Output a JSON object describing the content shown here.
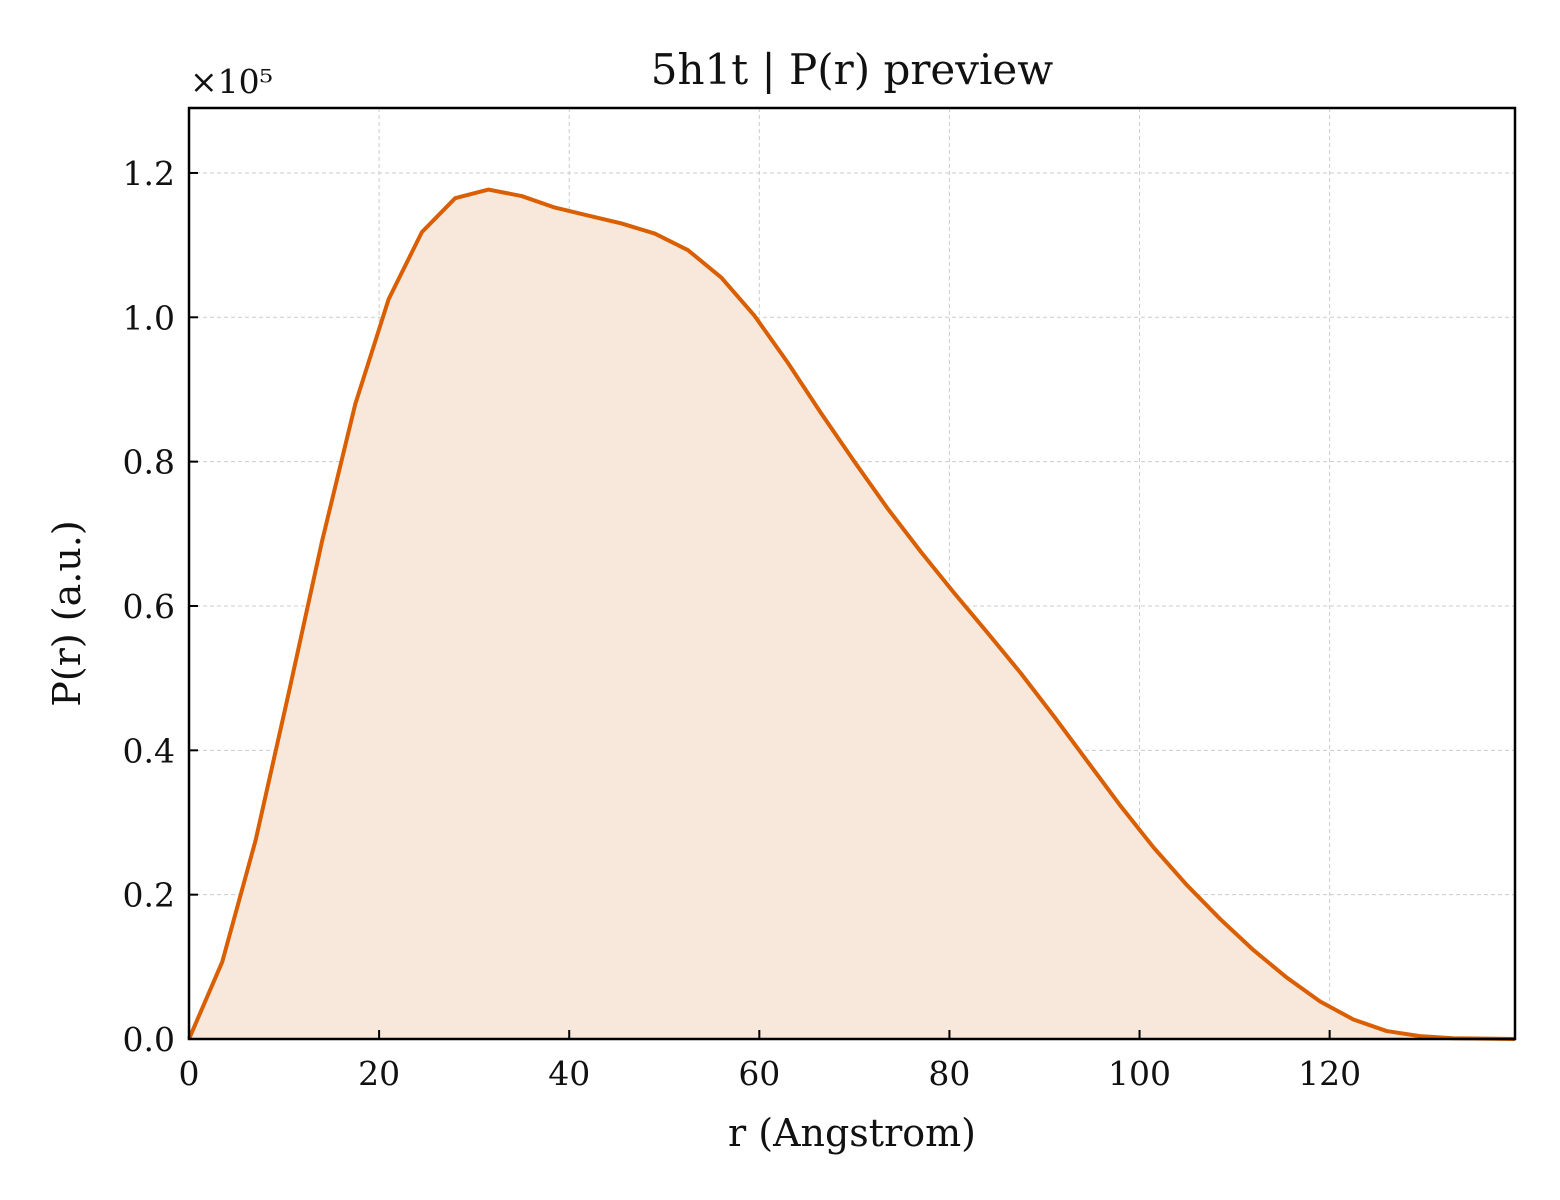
{
  "chart_data": {
    "type": "area",
    "title": "5h1t | P(r) preview",
    "xlabel": "r (Angstrom)",
    "ylabel": "P(r) (a.u.)",
    "y_offset_label": "×10⁵",
    "y_scale_factor": 100000,
    "xlim": [
      0,
      139.5
    ],
    "ylim": [
      0,
      1.29
    ],
    "x_ticks": [
      0,
      20,
      40,
      60,
      80,
      100,
      120
    ],
    "x_tick_labels": [
      "0",
      "20",
      "40",
      "60",
      "80",
      "100",
      "120"
    ],
    "y_ticks": [
      0.0,
      0.2,
      0.4,
      0.6,
      0.8,
      1.0,
      1.2
    ],
    "y_tick_labels": [
      "0.0",
      "0.2",
      "0.4",
      "0.6",
      "0.8",
      "1.0",
      "1.2"
    ],
    "grid": true,
    "line_color": "#D95F02",
    "fill_color": "#F8E8DC",
    "series": [
      {
        "x": [
          0,
          3.5,
          7,
          10.5,
          14,
          17.5,
          21,
          24.5,
          28,
          31.5,
          35,
          38.5,
          42,
          45.5,
          49,
          52.5,
          56,
          59.5,
          63,
          66.5,
          70,
          73.5,
          77,
          80.5,
          84,
          87.5,
          91,
          94.5,
          98,
          101.5,
          105,
          108.5,
          112,
          115.5,
          119,
          122.5,
          126,
          129.5,
          133,
          136.5,
          139.5
        ],
        "y": [
          0.0,
          0.107,
          0.275,
          0.48,
          0.69,
          0.88,
          1.025,
          1.118,
          1.165,
          1.177,
          1.168,
          1.152,
          1.141,
          1.13,
          1.116,
          1.093,
          1.055,
          1.002,
          0.937,
          0.867,
          0.8,
          0.735,
          0.675,
          0.618,
          0.563,
          0.507,
          0.447,
          0.385,
          0.323,
          0.265,
          0.213,
          0.166,
          0.123,
          0.085,
          0.052,
          0.027,
          0.011,
          0.004,
          0.001,
          0.0005,
          0.0
        ]
      }
    ]
  }
}
